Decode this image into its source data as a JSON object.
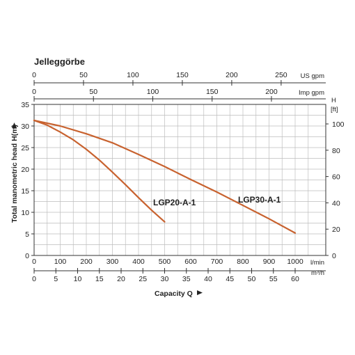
{
  "chart_data": {
    "type": "line",
    "title": "Jelleggörbe",
    "xlabel": "Capacity Q",
    "ylabel": "Total manometric head H(m)",
    "y2label": "H [ft]",
    "x_unit": "l/min",
    "xlim": [
      0,
      1100
    ],
    "ylim": [
      0,
      35
    ],
    "grid": true,
    "axes": {
      "x_lmin": {
        "unit": "l/min",
        "ticks": [
          0,
          100,
          200,
          300,
          400,
          500,
          600,
          700,
          800,
          900,
          1000
        ]
      },
      "x_m3h": {
        "unit": "m³/h",
        "ticks": [
          0,
          5,
          10,
          15,
          20,
          25,
          30,
          35,
          40,
          45,
          50,
          55,
          60
        ]
      },
      "x_usgpm": {
        "unit": "US gpm",
        "ticks": [
          0,
          50,
          100,
          150,
          200,
          250
        ]
      },
      "x_impgpm": {
        "unit": "Imp gpm",
        "ticks": [
          0,
          50,
          100,
          150,
          200
        ]
      },
      "y_m": {
        "unit": "m",
        "ticks": [
          0,
          5,
          10,
          15,
          20,
          25,
          30,
          35
        ]
      },
      "y_ft": {
        "unit_line1": "H",
        "unit_line2": "[ft]",
        "ticks": [
          0,
          20,
          40,
          60,
          80,
          100
        ]
      }
    },
    "series": [
      {
        "name": "LGP20-A-1",
        "color": "#c8622f",
        "x": [
          0,
          50,
          100,
          150,
          200,
          250,
          300,
          350,
          400,
          450,
          500
        ],
        "y": [
          31.3,
          30.2,
          28.6,
          26.8,
          24.6,
          22.1,
          19.3,
          16.4,
          13.4,
          10.5,
          7.8
        ]
      },
      {
        "name": "LGP30-A-1",
        "color": "#c8622f",
        "x": [
          0,
          100,
          200,
          300,
          400,
          500,
          600,
          700,
          800,
          900,
          1000
        ],
        "y": [
          31.3,
          30.0,
          28.2,
          26.1,
          23.4,
          20.6,
          17.6,
          14.7,
          11.6,
          8.5,
          5.2
        ]
      }
    ]
  }
}
